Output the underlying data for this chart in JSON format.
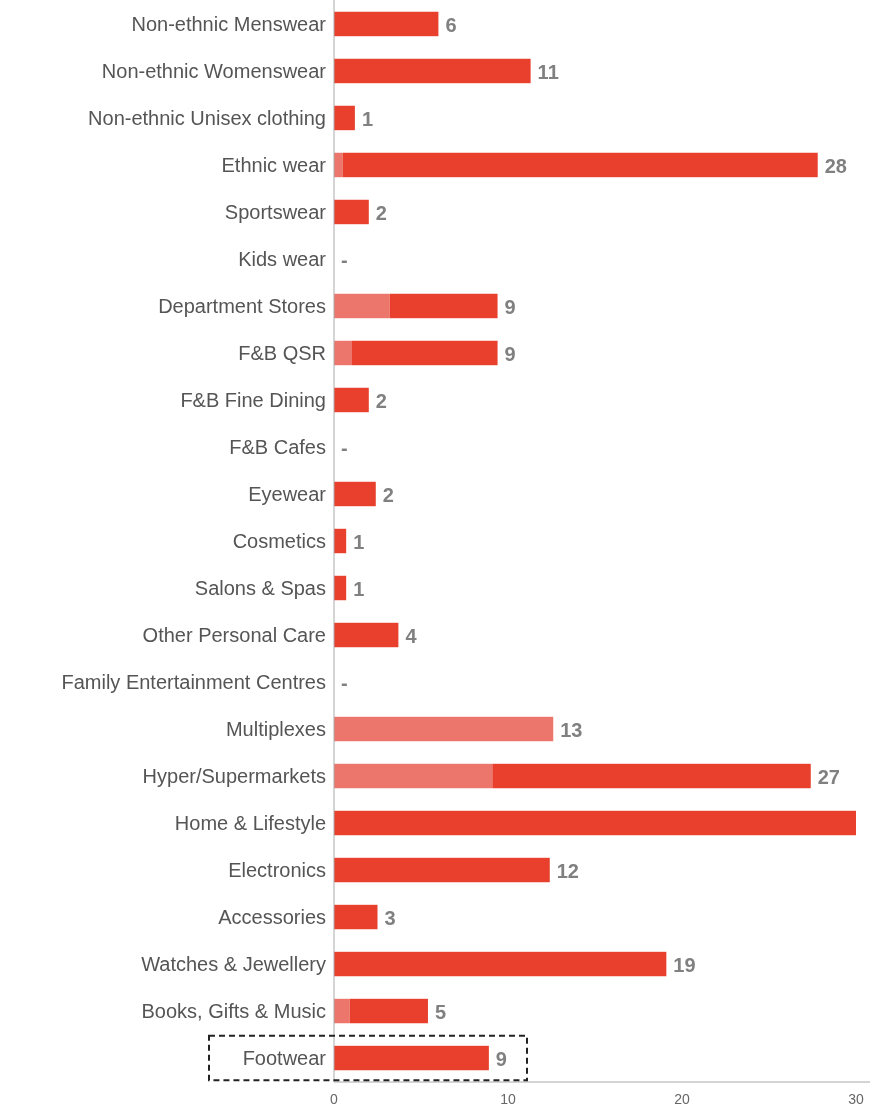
{
  "chart_data": {
    "type": "bar",
    "orientation": "horizontal",
    "stacked": true,
    "categories": [
      "Non-ethnic Menswear",
      "Non-ethnic Womenswear",
      "Non-ethnic Unisex clothing",
      "Ethnic wear",
      "Sportswear",
      "Kids wear",
      "Department Stores",
      "F&B QSR",
      "F&B Fine Dining",
      "F&B Cafes",
      "Eyewear",
      "Cosmetics",
      "Salons & Spas",
      "Other Personal Care",
      "Family Entertainment Centres",
      "Multiplexes",
      "Hyper/Supermarkets",
      "Home & Lifestyle",
      "Electronics",
      "Accessories",
      "Watches & Jewellery",
      "Books, Gifts & Music",
      "Footwear"
    ],
    "series": [
      {
        "color": "#ec766b",
        "values": [
          0,
          0,
          0,
          0.5,
          0,
          0,
          3.2,
          1.0,
          0,
          0,
          0,
          0,
          0,
          0,
          0,
          12.6,
          9.1,
          0,
          0,
          0,
          0,
          0.9,
          0
        ]
      },
      {
        "color": "#e8402c",
        "values": [
          6.0,
          11.3,
          1.2,
          27.3,
          2.0,
          0,
          6.2,
          8.4,
          2.0,
          0,
          2.4,
          0.7,
          0.7,
          3.7,
          0,
          0,
          18.3,
          30,
          12.4,
          2.5,
          19.1,
          4.5,
          8.9
        ]
      }
    ],
    "totals": [
      "6",
      "11",
      "1",
      "28",
      "2",
      "-",
      "9",
      "9",
      "2",
      "-",
      "2",
      "1",
      "1",
      "4",
      "-",
      "13",
      "27",
      null,
      "12",
      "3",
      "19",
      "5",
      "9"
    ],
    "xlim": [
      0,
      30
    ],
    "xticks": [
      0,
      10,
      20,
      30
    ]
  }
}
